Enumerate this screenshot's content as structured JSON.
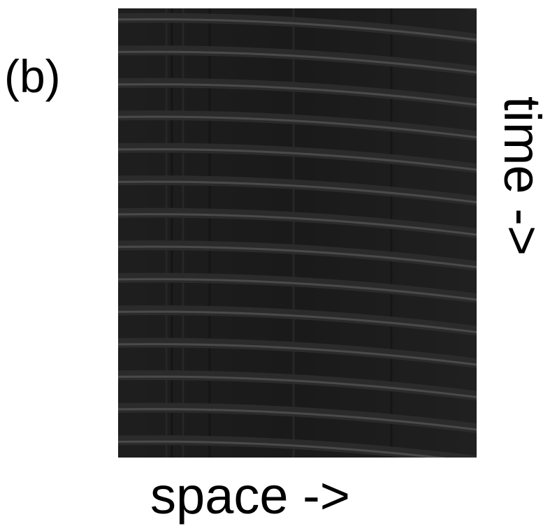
{
  "panel_label": "(b)",
  "x_label": "space ->",
  "y_label": "time ->"
}
